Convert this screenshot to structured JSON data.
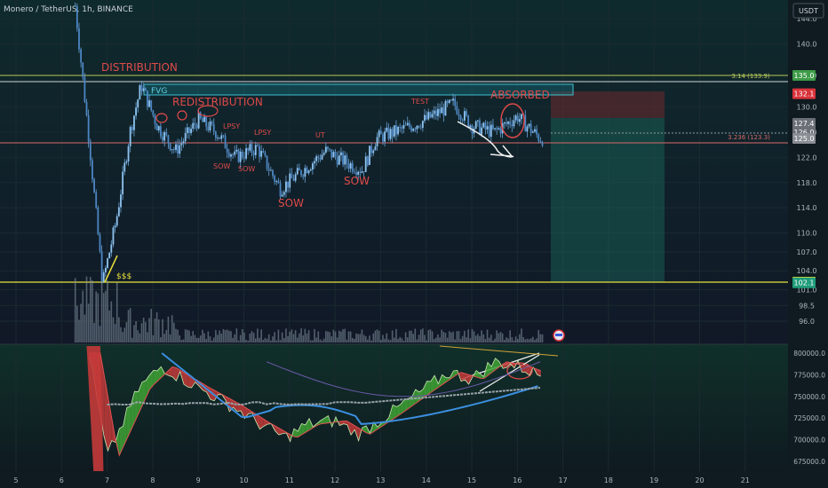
{
  "header": {
    "symbol_text": "Monero / TetherUS, 1h, BINANCE",
    "currency": "USDT"
  },
  "colors": {
    "bg_top": "#10262a",
    "bg_bottom": "#0f1720",
    "candle": "#6aa3d8",
    "annotation_red": "#e04a4a",
    "fib_line": "#c9c86a",
    "yellow_line": "#e8e23a",
    "osc_green": "#3fa535",
    "osc_red": "#c43a3a",
    "ma_blue": "#3b8fe0"
  },
  "price_axis": {
    "ticks": [
      "144.0",
      "140.0",
      "135.0",
      "130.0",
      "126.0",
      "122.0",
      "118.0",
      "114.0",
      "110.0",
      "107.0",
      "104.0",
      "101.0",
      "98.5",
      "96.0"
    ],
    "badges": [
      {
        "text": "135.0",
        "color": "#3e9b48"
      },
      {
        "text": "132.1",
        "color": "#d9323a"
      },
      {
        "text": "127.4",
        "color": "#6b6f76"
      },
      {
        "text": "126.0",
        "color": "#6b6f76"
      },
      {
        "text": "125.0",
        "color": "#8a8e94"
      },
      {
        "text": "102.2",
        "color": "#e8e23a",
        "textcolor": "#111"
      },
      {
        "text": "102.1",
        "color": "#1f9d7a"
      }
    ]
  },
  "osc_axis": {
    "ticks": [
      "800000.0",
      "775000.0",
      "750000.0",
      "725000.0",
      "700000.0",
      "675000.0"
    ]
  },
  "time_axis": {
    "ticks": [
      "5",
      "6",
      "7",
      "8",
      "9",
      "10",
      "11",
      "12",
      "13",
      "14",
      "15",
      "16",
      "17",
      "18",
      "19",
      "20",
      "21"
    ]
  },
  "annotations": {
    "distribution": "DISTRIBUTION",
    "redistribution": "REDISTRIBUTION",
    "fvg": "FVG",
    "lpsy1": "LPSY",
    "lpsy2": "LPSY",
    "ut": "UT",
    "test": "TEST",
    "absorbed": "ABSORBED",
    "sow1": "SOW",
    "sow2": "SOW",
    "sow3": "SOW",
    "sow4": "SOW",
    "dollars": "$$$",
    "fib_top": "3.14 (133.9)",
    "fib_bottom": "3.236 (123.3)"
  },
  "chart_data": {
    "type": "candlestick",
    "pair": "XMR/USDT",
    "interval": "1h",
    "exchange": "BINANCE",
    "x_ticks": [
      "5",
      "6",
      "7",
      "8",
      "9",
      "10",
      "11",
      "12",
      "13",
      "14",
      "15",
      "16",
      "17",
      "18",
      "19",
      "20",
      "21"
    ],
    "y_range": [
      94,
      148
    ],
    "approx_close_path": [
      {
        "day": 6.3,
        "price": 146.0
      },
      {
        "day": 6.6,
        "price": 125.0
      },
      {
        "day": 6.9,
        "price": 102.0
      },
      {
        "day": 7.2,
        "price": 112.0
      },
      {
        "day": 7.5,
        "price": 126.0
      },
      {
        "day": 7.75,
        "price": 133.5
      },
      {
        "day": 8.1,
        "price": 127.0
      },
      {
        "day": 8.5,
        "price": 123.0
      },
      {
        "day": 9.0,
        "price": 128.0
      },
      {
        "day": 9.4,
        "price": 126.0
      },
      {
        "day": 9.8,
        "price": 122.0
      },
      {
        "day": 10.3,
        "price": 123.5
      },
      {
        "day": 10.8,
        "price": 117.0
      },
      {
        "day": 11.3,
        "price": 120.0
      },
      {
        "day": 11.8,
        "price": 123.0
      },
      {
        "day": 12.3,
        "price": 121.0
      },
      {
        "day": 12.6,
        "price": 120.0
      },
      {
        "day": 12.9,
        "price": 125.0
      },
      {
        "day": 13.5,
        "price": 126.5
      },
      {
        "day": 14.0,
        "price": 128.0
      },
      {
        "day": 14.6,
        "price": 130.5
      },
      {
        "day": 15.0,
        "price": 127.0
      },
      {
        "day": 15.5,
        "price": 126.0
      },
      {
        "day": 16.0,
        "price": 128.5
      },
      {
        "day": 16.5,
        "price": 125.0
      }
    ],
    "levels": [
      {
        "label": "3.14 (133.9)",
        "price": 133.9
      },
      {
        "label": "3.236 (123.3)",
        "price": 123.3
      },
      {
        "label": "",
        "price": 102.2
      }
    ],
    "position": {
      "entry": 127.4,
      "stop": 132.1,
      "target": 102.2
    },
    "oscillator": {
      "ticks": [
        "800000.0",
        "775000.0",
        "750000.0",
        "725000.0",
        "700000.0",
        "675000.0"
      ],
      "approx_path": [
        {
          "day": 6.6,
          "value": 800000
        },
        {
          "day": 7.0,
          "value": 680000
        },
        {
          "day": 7.7,
          "value": 760000
        },
        {
          "day": 8.2,
          "value": 785000
        },
        {
          "day": 9.0,
          "value": 760000
        },
        {
          "day": 9.7,
          "value": 740000
        },
        {
          "day": 10.3,
          "value": 720000
        },
        {
          "day": 10.9,
          "value": 702000
        },
        {
          "day": 11.4,
          "value": 718000
        },
        {
          "day": 12.0,
          "value": 722000
        },
        {
          "day": 12.5,
          "value": 706000
        },
        {
          "day": 13.2,
          "value": 730000
        },
        {
          "day": 14.0,
          "value": 760000
        },
        {
          "day": 14.5,
          "value": 778000
        },
        {
          "day": 15.0,
          "value": 770000
        },
        {
          "day": 15.5,
          "value": 790000
        },
        {
          "day": 16.0,
          "value": 785000
        },
        {
          "day": 16.5,
          "value": 775000
        }
      ]
    }
  }
}
